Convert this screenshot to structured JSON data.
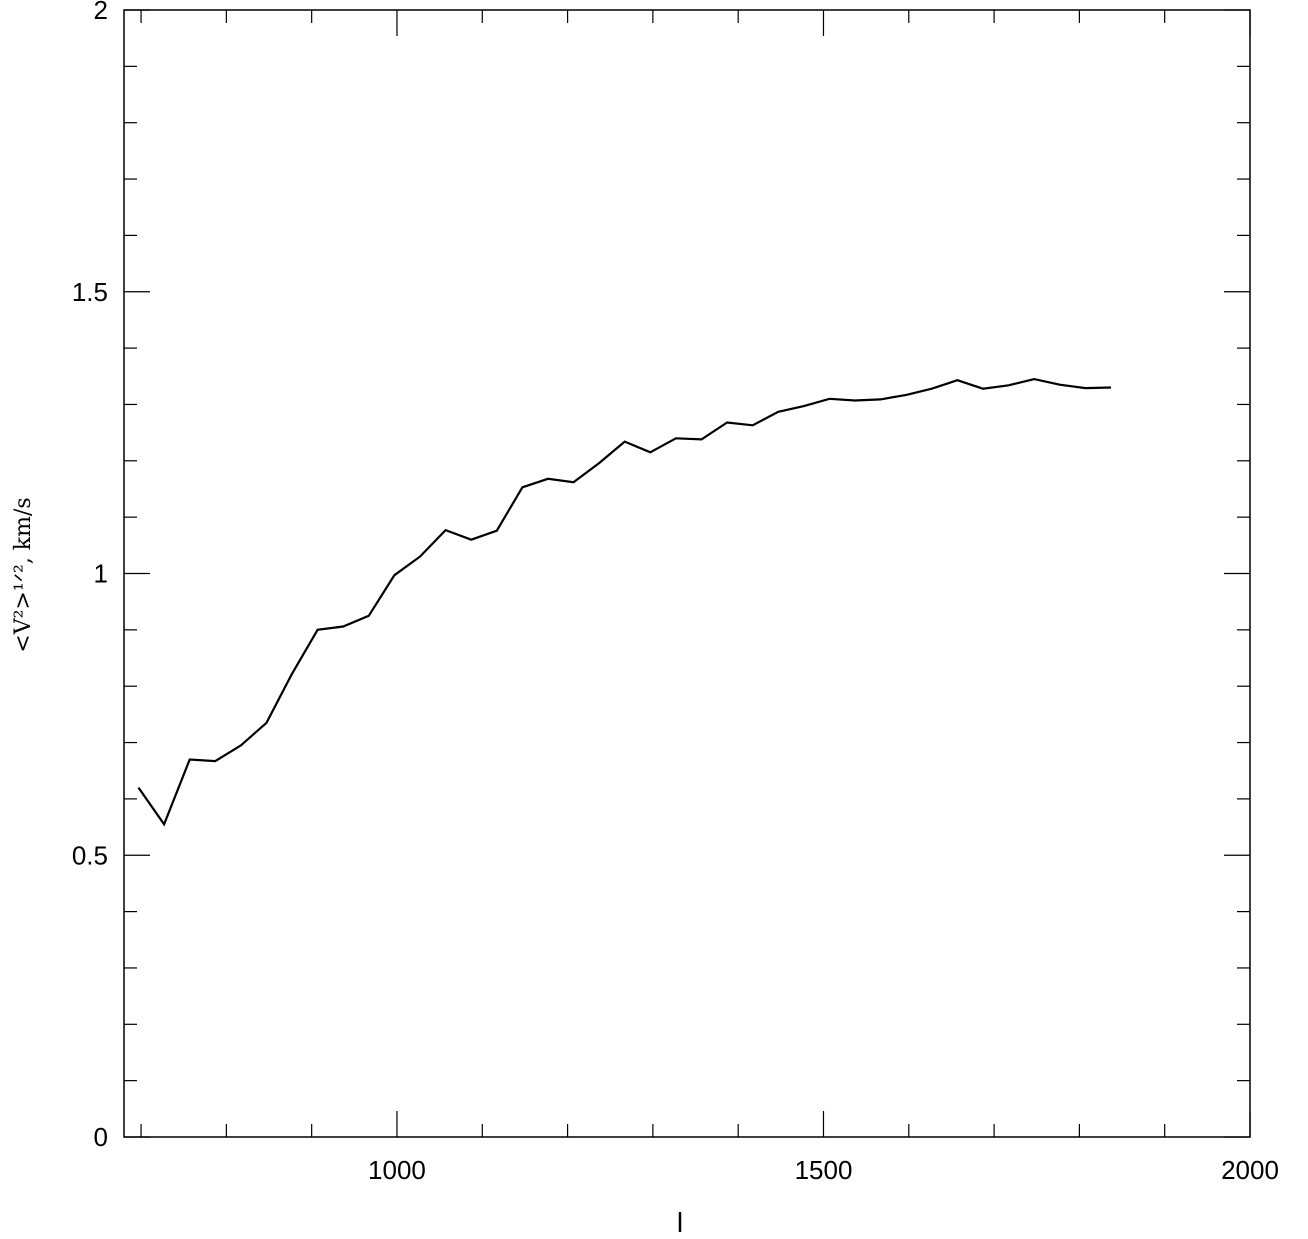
{
  "chart_data": {
    "type": "line",
    "title": "",
    "xlabel": "l",
    "ylabel": "<V²>¹ᐟ², km/s",
    "xlim": [
      680,
      2000
    ],
    "ylim": [
      0,
      2
    ],
    "x_major_ticks": [
      1000,
      1500,
      2000
    ],
    "x_tick_labels": [
      "1000",
      "1500",
      "2000"
    ],
    "x_minor_step": 100,
    "y_major_ticks": [
      0,
      0.5,
      1,
      1.5,
      2
    ],
    "y_tick_labels": [
      "0",
      "0.5",
      "1",
      "1.5",
      "2"
    ],
    "y_minor_step": 0.1,
    "grid": false,
    "legend": "none",
    "series": [
      {
        "color": "#000000",
        "x": [
          697,
          727,
          757,
          787,
          817,
          847,
          877,
          907,
          937,
          967,
          997,
          1027,
          1057,
          1087,
          1117,
          1147,
          1177,
          1207,
          1237,
          1267,
          1297,
          1327,
          1357,
          1387,
          1417,
          1447,
          1477,
          1507,
          1537,
          1567,
          1597,
          1627,
          1657,
          1687,
          1717,
          1747,
          1777,
          1807,
          1837
        ],
        "y": [
          0.62,
          0.555,
          0.67,
          0.667,
          0.695,
          0.735,
          0.822,
          0.9,
          0.906,
          0.925,
          0.997,
          1.03,
          1.077,
          1.06,
          1.076,
          1.153,
          1.168,
          1.162,
          1.196,
          1.234,
          1.215,
          1.24,
          1.238,
          1.268,
          1.263,
          1.287,
          1.297,
          1.31,
          1.307,
          1.309,
          1.317,
          1.328,
          1.343,
          1.328,
          1.334,
          1.345,
          1.335,
          1.329,
          1.33
        ]
      }
    ]
  }
}
